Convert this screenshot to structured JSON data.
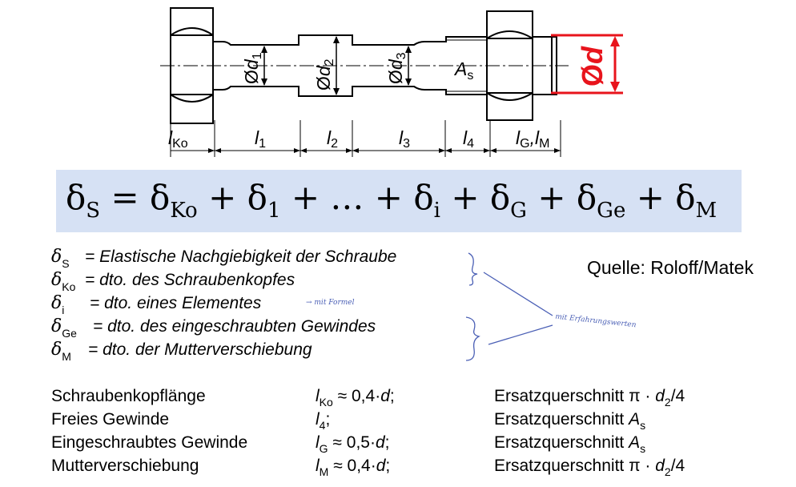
{
  "figure": {
    "labels": {
      "d1": "d1",
      "d2": "d2",
      "d3": "d3",
      "As": "As",
      "d": "d",
      "diameter_symbol": "Ø",
      "lKo": "lKo",
      "l1": "l1",
      "l2": "l2",
      "l3": "l3",
      "l4": "l4",
      "lG_lM": "lG,lM"
    },
    "highlight_color": "#e8141c"
  },
  "formula": {
    "delta": "δ",
    "subs": [
      "S",
      "Ko",
      "1",
      "i",
      "G",
      "Ge",
      "M"
    ],
    "eq": "=",
    "plus": "+",
    "ellipsis": "…"
  },
  "definitions": [
    {
      "sub": "S",
      "text": "= Elastische Nachgiebigkeit der Schraube"
    },
    {
      "sub": "Ko",
      "text": "= dto. des Schraubenkopfes"
    },
    {
      "sub": "i",
      "text": "= dto. eines Elementes"
    },
    {
      "sub": "Ge",
      "text": "= dto. des eingeschraubten Gewindes"
    },
    {
      "sub": "M",
      "text": "= dto. der Mutterverschiebung"
    }
  ],
  "source": "Quelle: Roloff/Matek",
  "annotations": {
    "formula_note": "→ mit Formel",
    "table_note": "mit Erfahrungswerten"
  },
  "table": [
    {
      "name": "Schraubenkopflänge",
      "sym": "l",
      "sub": "Ko",
      "rel": "≈ 0,4·",
      "var": "d",
      "end": ";",
      "cs": "Ersatzquerschnitt π · ",
      "cs_var": "d",
      "cs_sub": "2",
      "cs_end": "/4"
    },
    {
      "name": "Freies Gewinde",
      "sym": "l",
      "sub": "4",
      "rel": "",
      "var": "",
      "end": ";",
      "cs": "Ersatzquerschnitt ",
      "cs_var": "A",
      "cs_sub": "s",
      "cs_end": ""
    },
    {
      "name": "Eingeschraubtes Gewinde",
      "sym": "l",
      "sub": "G",
      "rel": "≈ 0,5·",
      "var": "d",
      "end": ";",
      "cs": "Ersatzquerschnitt ",
      "cs_var": "A",
      "cs_sub": "s",
      "cs_end": ""
    },
    {
      "name": "Mutterverschiebung",
      "sym": "l",
      "sub": "M",
      "rel": "≈ 0,4·",
      "var": "d",
      "end": ";",
      "cs": "Ersatzquerschnitt π · ",
      "cs_var": "d",
      "cs_sub": "2",
      "cs_end": "/4"
    }
  ]
}
